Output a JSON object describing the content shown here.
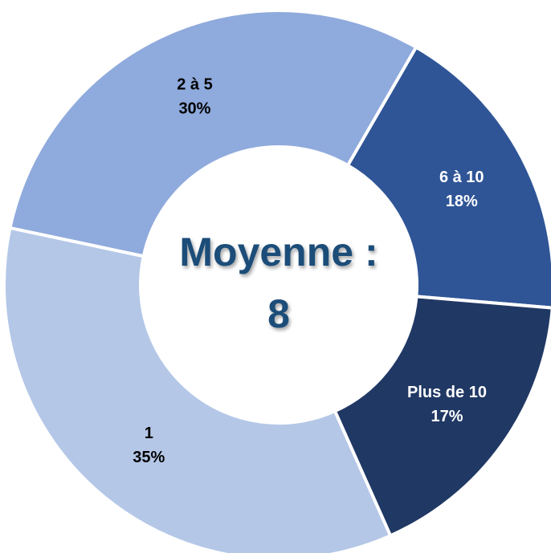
{
  "chart_data": {
    "type": "donut",
    "categories": [
      "6 à 10",
      "Plus de 10",
      "1",
      "2 à 5"
    ],
    "values": [
      18,
      17,
      35,
      30
    ],
    "value_labels": [
      "18%",
      "17%",
      "35%",
      "30%"
    ],
    "colors": [
      "#2f5597",
      "#203864",
      "#b4c7e7",
      "#8faadc"
    ],
    "label_colors": [
      "#ffffff",
      "#ffffff",
      "#000000",
      "#000000"
    ],
    "center_label": [
      "Moyenne :",
      "8"
    ]
  }
}
